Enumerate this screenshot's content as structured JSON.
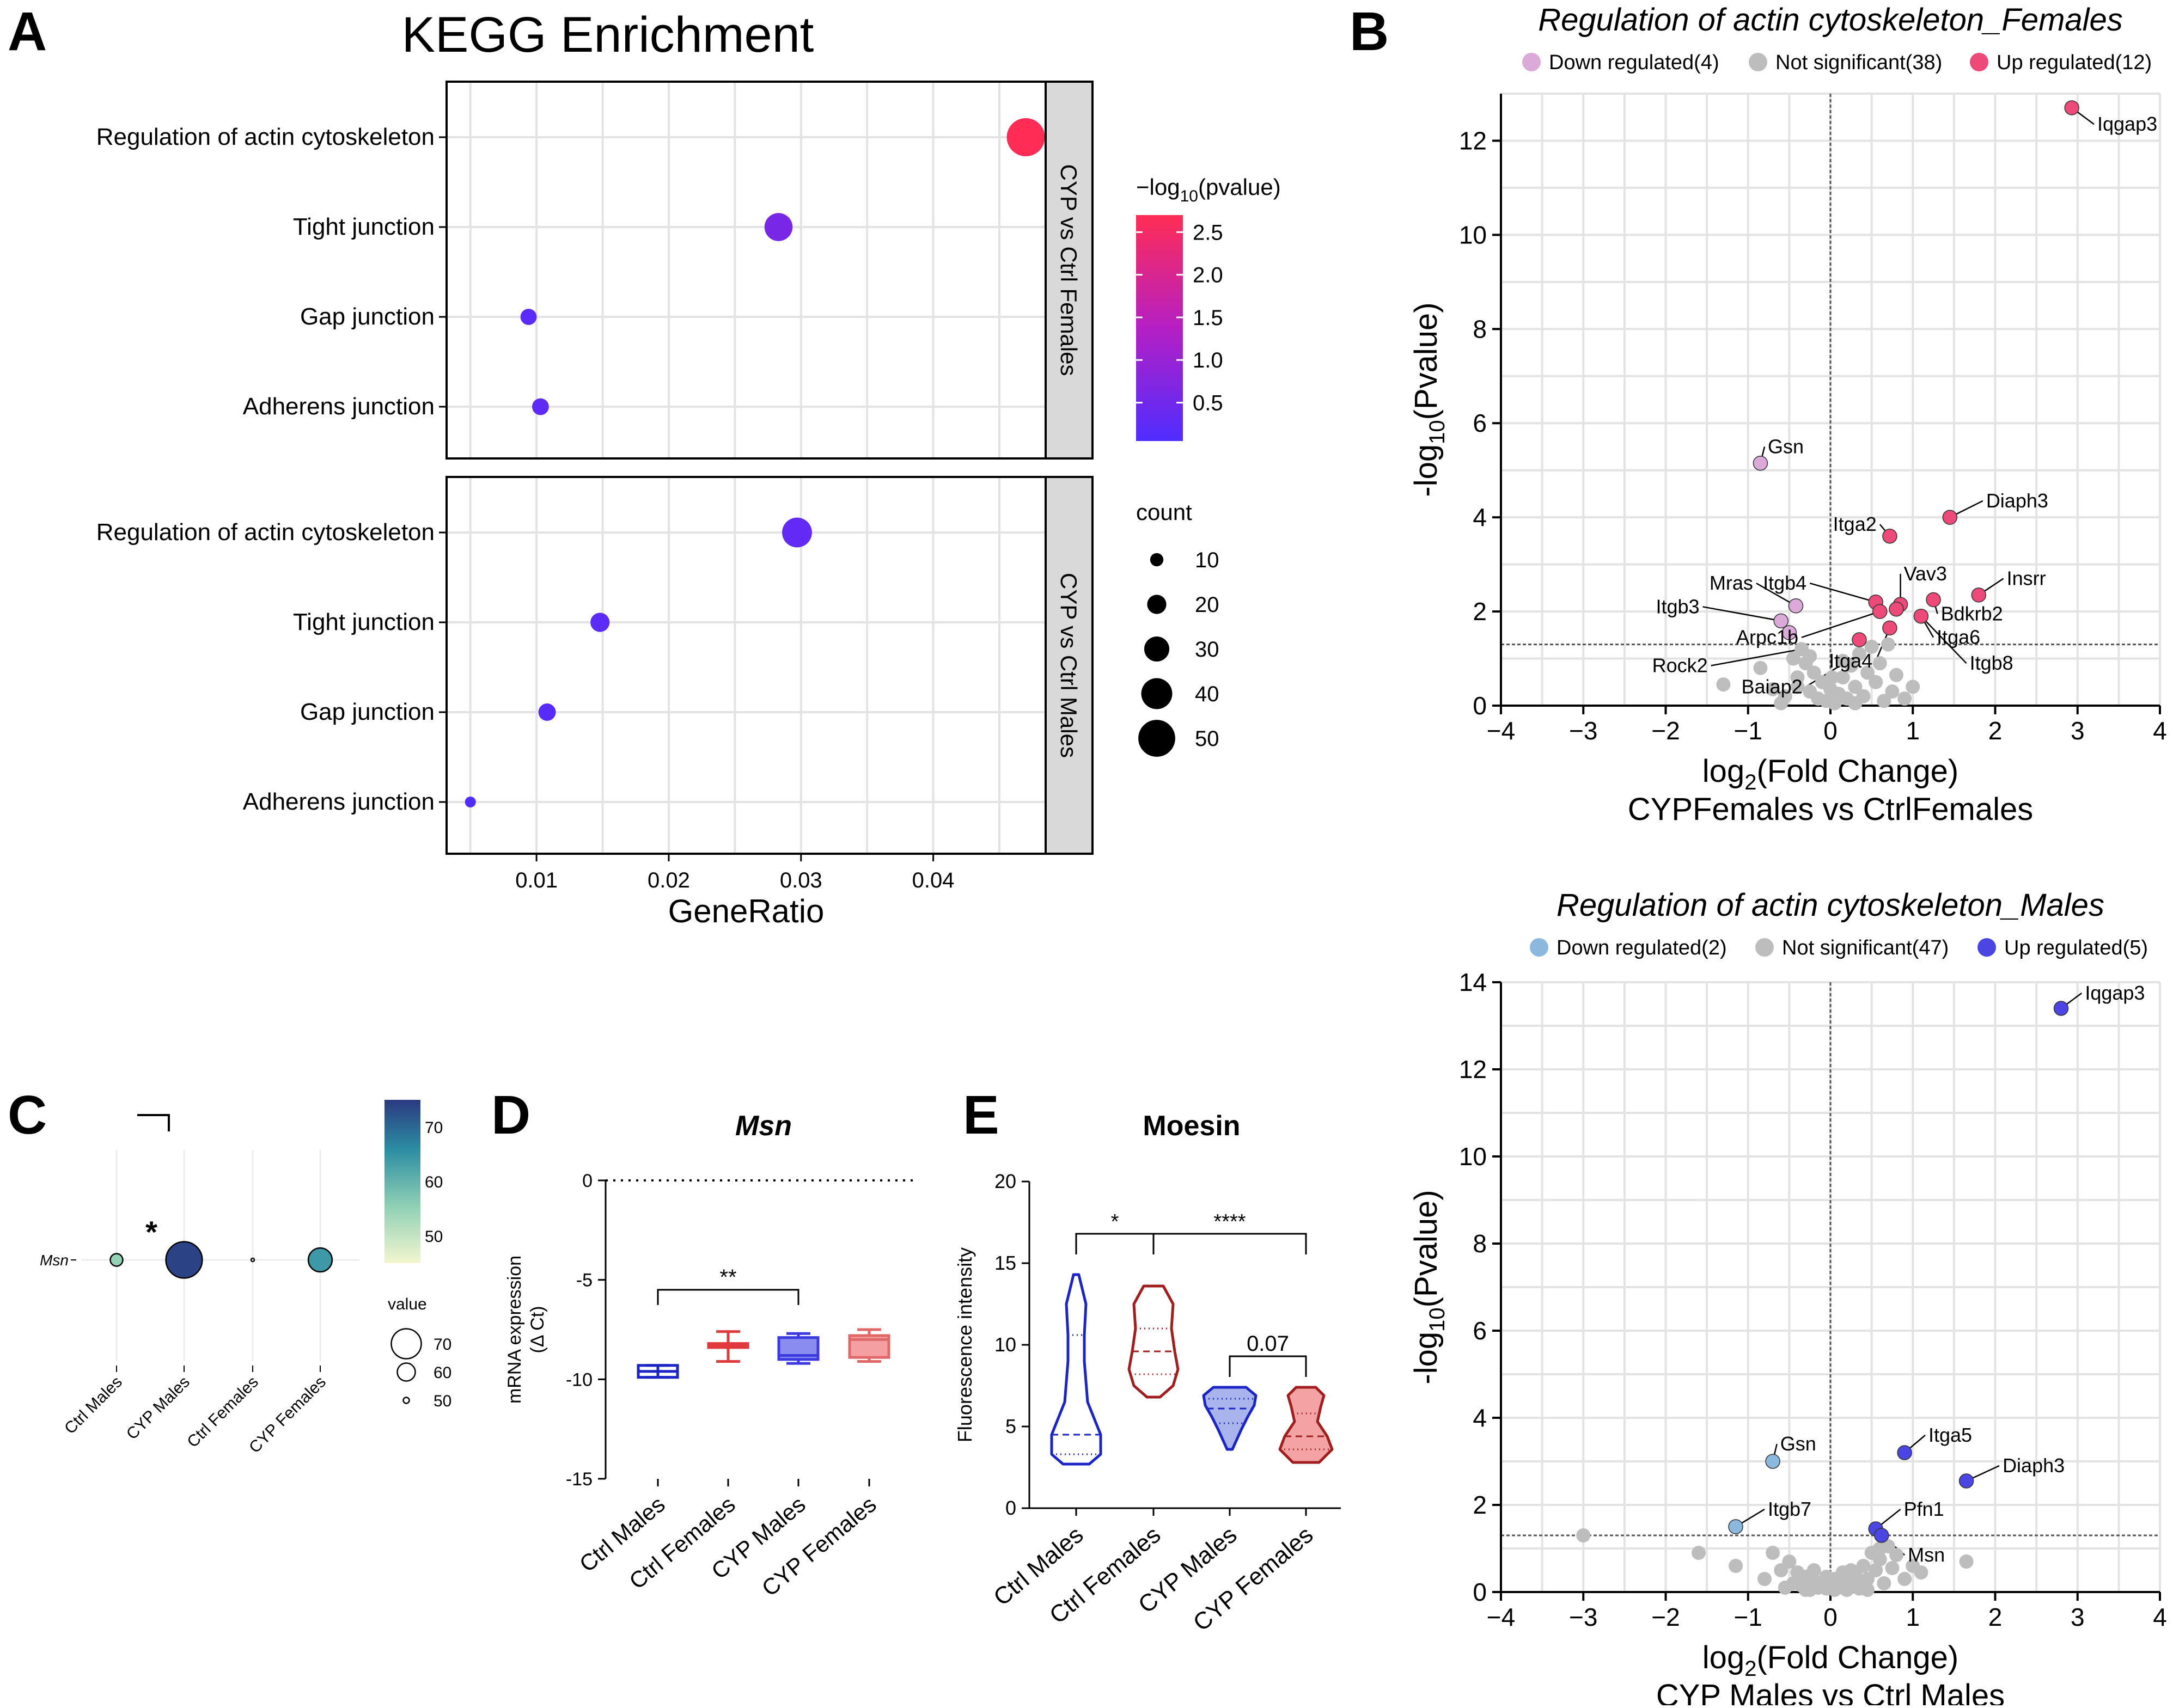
{
  "panels": {
    "A": "A",
    "B": "B",
    "C": "C",
    "D": "D",
    "E": "E"
  },
  "colors": {
    "enrich_low": "#4f2dff",
    "enrich_high": "#ff2d55",
    "fem_up": "#ee4a79",
    "fem_down": "#dcaad8",
    "male_up": "#4b46e3",
    "male_down": "#8db8de",
    "ns": "#bdbdbd",
    "ctrl_male": "#1b24c4",
    "ctrl_female": "#e03a3e",
    "cyp_male": "#3a3ae0",
    "cyp_female": "#e06868",
    "viol_female": "#a11e1e"
  },
  "chart_data": [
    {
      "id": "A",
      "type": "scatter",
      "title": "KEGG Enrichment",
      "xlabel": "GeneRatio",
      "xlim": [
        0.0032,
        0.0485
      ],
      "xticks": [
        "0.01",
        "0.02",
        "0.03",
        "0.04"
      ],
      "categories": [
        "Regulation of actin cytoskeleton",
        "Tight junction",
        "Gap junction",
        "Adherens junction"
      ],
      "facets": [
        {
          "label": "CYP vs Ctrl Females",
          "points": [
            {
              "term": "Regulation of actin cytoskeleton",
              "gene_ratio": 0.047,
              "count": 52,
              "neglog10p": 2.7
            },
            {
              "term": "Tight junction",
              "gene_ratio": 0.0283,
              "count": 35,
              "neglog10p": 0.6
            },
            {
              "term": "Gap junction",
              "gene_ratio": 0.0094,
              "count": 15,
              "neglog10p": 0.2
            },
            {
              "term": "Adherens junction",
              "gene_ratio": 0.0103,
              "count": 16,
              "neglog10p": 0.25
            }
          ]
        },
        {
          "label": "CYP vs Ctrl Males",
          "points": [
            {
              "term": "Regulation of actin cytoskeleton",
              "gene_ratio": 0.0297,
              "count": 38,
              "neglog10p": 0.3
            },
            {
              "term": "Tight junction",
              "gene_ratio": 0.0148,
              "count": 20,
              "neglog10p": 0.2
            },
            {
              "term": "Gap junction",
              "gene_ratio": 0.0108,
              "count": 17,
              "neglog10p": 0.15
            },
            {
              "term": "Adherens junction",
              "gene_ratio": 0.005,
              "count": 6,
              "neglog10p": 0.05
            }
          ]
        }
      ],
      "color_legend": {
        "title_main": "−log",
        "title_sub": "10",
        "title_end": "(pvalue)",
        "ticks": [
          "2.5",
          "2.0",
          "1.5",
          "1.0",
          "0.5"
        ]
      },
      "size_legend": {
        "title": "count",
        "ticks": [
          "10",
          "20",
          "30",
          "40",
          "50"
        ]
      }
    },
    {
      "id": "B_females",
      "type": "scatter",
      "title": "Regulation of actin cytoskeleton_Females",
      "legend": [
        "Down regulated(4)",
        "Not significant(38)",
        "Up regulated(12)"
      ],
      "xlim": [
        -4,
        4
      ],
      "ylim": [
        0,
        13
      ],
      "xticks": [
        "−4",
        "−3",
        "−2",
        "−1",
        "0",
        "1",
        "2",
        "3",
        "4"
      ],
      "yticks": [
        "0",
        "2",
        "4",
        "6",
        "8",
        "10",
        "12"
      ],
      "xlabel_main": "log",
      "xlabel_sub": "2",
      "xlabel_end": "(Fold Change)",
      "xlabel2": "CYPFemales vs CtrlFemales",
      "ylabel_main": "-log",
      "ylabel_sub": "10",
      "ylabel_end": "(Pvalue)",
      "threshold": 1.3,
      "points": [
        {
          "x": 2.93,
          "y": 12.7,
          "g": "up"
        },
        {
          "x": 1.45,
          "y": 4.0,
          "g": "up"
        },
        {
          "x": 0.72,
          "y": 3.6,
          "g": "up"
        },
        {
          "x": 1.8,
          "y": 2.35,
          "g": "up"
        },
        {
          "x": 0.55,
          "y": 2.2,
          "g": "up"
        },
        {
          "x": 0.6,
          "y": 2.0,
          "g": "up"
        },
        {
          "x": 0.85,
          "y": 2.15,
          "g": "up"
        },
        {
          "x": 0.8,
          "y": 2.05,
          "g": "up"
        },
        {
          "x": 1.25,
          "y": 2.25,
          "g": "up"
        },
        {
          "x": 1.1,
          "y": 1.9,
          "g": "up"
        },
        {
          "x": 0.72,
          "y": 1.65,
          "g": "up"
        },
        {
          "x": 0.35,
          "y": 1.4,
          "g": "up"
        },
        {
          "x": -0.85,
          "y": 5.15,
          "g": "down"
        },
        {
          "x": -0.6,
          "y": 1.8,
          "g": "down"
        },
        {
          "x": -0.42,
          "y": 2.12,
          "g": "down"
        },
        {
          "x": -0.5,
          "y": 1.55,
          "g": "down"
        },
        {
          "x": -1.3,
          "y": 0.45,
          "g": "ns"
        },
        {
          "x": -0.85,
          "y": 0.8,
          "g": "ns"
        },
        {
          "x": -0.7,
          "y": 0.35,
          "g": "ns"
        },
        {
          "x": -0.55,
          "y": 0.2,
          "g": "ns"
        },
        {
          "x": -0.45,
          "y": 1.0,
          "g": "ns"
        },
        {
          "x": -0.4,
          "y": 0.6,
          "g": "ns"
        },
        {
          "x": -0.35,
          "y": 1.2,
          "g": "ns"
        },
        {
          "x": -0.3,
          "y": 0.9,
          "g": "ns"
        },
        {
          "x": -0.25,
          "y": 0.3,
          "g": "ns"
        },
        {
          "x": -0.2,
          "y": 0.7,
          "g": "ns"
        },
        {
          "x": -0.15,
          "y": 0.15,
          "g": "ns"
        },
        {
          "x": -0.1,
          "y": 0.5,
          "g": "ns"
        },
        {
          "x": -0.05,
          "y": 0.1,
          "g": "ns"
        },
        {
          "x": 0.0,
          "y": 0.35,
          "g": "ns"
        },
        {
          "x": 0.05,
          "y": 0.05,
          "g": "ns"
        },
        {
          "x": 0.1,
          "y": 0.25,
          "g": "ns"
        },
        {
          "x": 0.15,
          "y": 0.6,
          "g": "ns"
        },
        {
          "x": 0.2,
          "y": 0.15,
          "g": "ns"
        },
        {
          "x": 0.25,
          "y": 0.85,
          "g": "ns"
        },
        {
          "x": 0.3,
          "y": 0.4,
          "g": "ns"
        },
        {
          "x": 0.35,
          "y": 1.1,
          "g": "ns"
        },
        {
          "x": 0.4,
          "y": 0.2,
          "g": "ns"
        },
        {
          "x": 0.45,
          "y": 0.7,
          "g": "ns"
        },
        {
          "x": 0.5,
          "y": 1.25,
          "g": "ns"
        },
        {
          "x": 0.55,
          "y": 0.5,
          "g": "ns"
        },
        {
          "x": 0.6,
          "y": 0.9,
          "g": "ns"
        },
        {
          "x": 0.65,
          "y": 0.1,
          "g": "ns"
        },
        {
          "x": 0.7,
          "y": 1.3,
          "g": "ns"
        },
        {
          "x": 0.75,
          "y": 0.3,
          "g": "ns"
        },
        {
          "x": 0.8,
          "y": 0.65,
          "g": "ns"
        },
        {
          "x": 0.9,
          "y": 0.15,
          "g": "ns"
        },
        {
          "x": 1.0,
          "y": 0.4,
          "g": "ns"
        },
        {
          "x": -0.6,
          "y": 0.05,
          "g": "ns"
        },
        {
          "x": 0.02,
          "y": 0.6,
          "g": "ns"
        },
        {
          "x": -0.25,
          "y": 1.05,
          "g": "ns"
        },
        {
          "x": 0.15,
          "y": 0.95,
          "g": "ns"
        },
        {
          "x": 0.3,
          "y": 0.05,
          "g": "ns"
        },
        {
          "x": -0.4,
          "y": 0.4,
          "g": "ns"
        }
      ],
      "labels": [
        {
          "t": "Iqgap3",
          "x": 2.93,
          "y": 12.7,
          "lx": 3.2,
          "ly": 12.35
        },
        {
          "t": "Diaph3",
          "x": 1.45,
          "y": 4.0,
          "lx": 1.85,
          "ly": 4.35
        },
        {
          "t": "Itga2",
          "x": 0.72,
          "y": 3.6,
          "lx": 0.6,
          "ly": 3.85
        },
        {
          "t": "Gsn",
          "x": -0.85,
          "y": 5.15,
          "lx": -0.8,
          "ly": 5.5
        },
        {
          "t": "Insrr",
          "x": 1.8,
          "y": 2.35,
          "lx": 2.1,
          "ly": 2.7
        },
        {
          "t": "Vav3",
          "x": 0.85,
          "y": 2.15,
          "lx": 0.85,
          "ly": 2.8
        },
        {
          "t": "Itgb4",
          "x": 0.55,
          "y": 2.2,
          "lx": -0.25,
          "ly": 2.6
        },
        {
          "t": "Mras",
          "x": -0.42,
          "y": 2.12,
          "lx": -0.9,
          "ly": 2.6
        },
        {
          "t": "Bdkrb2",
          "x": 1.25,
          "y": 2.25,
          "lx": 1.3,
          "ly": 1.95
        },
        {
          "t": "Itgb3",
          "x": -0.6,
          "y": 1.8,
          "lx": -1.55,
          "ly": 2.1
        },
        {
          "t": "Arpc1b",
          "x": 0.6,
          "y": 2.0,
          "lx": -0.35,
          "ly": 1.45
        },
        {
          "t": "Itga6",
          "x": 1.1,
          "y": 1.9,
          "lx": 1.25,
          "ly": 1.45
        },
        {
          "t": "Itgb8",
          "x": 1.1,
          "y": 1.9,
          "lx": 1.65,
          "ly": 0.9
        },
        {
          "t": "Itga4",
          "x": 0.72,
          "y": 1.65,
          "lx": 0.55,
          "ly": 0.95
        },
        {
          "t": "Rock2",
          "x": -0.35,
          "y": 1.2,
          "lx": -1.45,
          "ly": 0.85
        },
        {
          "t": "Baiap2",
          "x": 0.35,
          "y": 1.1,
          "lx": -0.3,
          "ly": 0.4
        }
      ]
    },
    {
      "id": "B_males",
      "type": "scatter",
      "title": "Regulation of actin cytoskeleton_Males",
      "legend": [
        "Down regulated(2)",
        "Not significant(47)",
        "Up regulated(5)"
      ],
      "xlim": [
        -4,
        4
      ],
      "ylim": [
        0,
        14
      ],
      "xticks": [
        "−4",
        "−3",
        "−2",
        "−1",
        "0",
        "1",
        "2",
        "3",
        "4"
      ],
      "yticks": [
        "0",
        "2",
        "4",
        "6",
        "8",
        "10",
        "12",
        "14"
      ],
      "xlabel_main": "log",
      "xlabel_sub": "2",
      "xlabel_end": "(Fold Change)",
      "xlabel2": "CYP Males vs Ctrl Males",
      "ylabel_main": "-log",
      "ylabel_sub": "10",
      "ylabel_end": "(Pvalue)",
      "threshold": 1.3,
      "points": [
        {
          "x": 2.8,
          "y": 13.4,
          "g": "up"
        },
        {
          "x": 0.9,
          "y": 3.2,
          "g": "up"
        },
        {
          "x": 1.65,
          "y": 2.55,
          "g": "up"
        },
        {
          "x": 0.55,
          "y": 1.45,
          "g": "up"
        },
        {
          "x": 0.62,
          "y": 1.3,
          "g": "up"
        },
        {
          "x": -0.7,
          "y": 3.0,
          "g": "down"
        },
        {
          "x": -1.15,
          "y": 1.5,
          "g": "down"
        },
        {
          "x": -3.0,
          "y": 1.3,
          "g": "ns"
        },
        {
          "x": -1.6,
          "y": 0.9,
          "g": "ns"
        },
        {
          "x": -1.15,
          "y": 0.6,
          "g": "ns"
        },
        {
          "x": -0.8,
          "y": 0.3,
          "g": "ns"
        },
        {
          "x": -0.7,
          "y": 0.9,
          "g": "ns"
        },
        {
          "x": -0.6,
          "y": 0.5,
          "g": "ns"
        },
        {
          "x": -0.5,
          "y": 0.7,
          "g": "ns"
        },
        {
          "x": -0.45,
          "y": 0.2,
          "g": "ns"
        },
        {
          "x": -0.4,
          "y": 0.45,
          "g": "ns"
        },
        {
          "x": -0.35,
          "y": 0.15,
          "g": "ns"
        },
        {
          "x": -0.3,
          "y": 0.35,
          "g": "ns"
        },
        {
          "x": -0.25,
          "y": 0.05,
          "g": "ns"
        },
        {
          "x": -0.2,
          "y": 0.25,
          "g": "ns"
        },
        {
          "x": -0.15,
          "y": 0.1,
          "g": "ns"
        },
        {
          "x": -0.1,
          "y": 0.18,
          "g": "ns"
        },
        {
          "x": -0.05,
          "y": 0.08,
          "g": "ns"
        },
        {
          "x": 0.0,
          "y": 0.12,
          "g": "ns"
        },
        {
          "x": 0.05,
          "y": 0.05,
          "g": "ns"
        },
        {
          "x": 0.1,
          "y": 0.2,
          "g": "ns"
        },
        {
          "x": 0.15,
          "y": 0.1,
          "g": "ns"
        },
        {
          "x": 0.2,
          "y": 0.3,
          "g": "ns"
        },
        {
          "x": 0.25,
          "y": 0.15,
          "g": "ns"
        },
        {
          "x": 0.3,
          "y": 0.4,
          "g": "ns"
        },
        {
          "x": 0.35,
          "y": 0.08,
          "g": "ns"
        },
        {
          "x": 0.4,
          "y": 0.6,
          "g": "ns"
        },
        {
          "x": 0.45,
          "y": 0.3,
          "g": "ns"
        },
        {
          "x": 0.5,
          "y": 0.9,
          "g": "ns"
        },
        {
          "x": 0.55,
          "y": 0.5,
          "g": "ns"
        },
        {
          "x": 0.6,
          "y": 0.75,
          "g": "ns"
        },
        {
          "x": 0.65,
          "y": 0.2,
          "g": "ns"
        },
        {
          "x": 0.7,
          "y": 1.05,
          "g": "ns"
        },
        {
          "x": 0.75,
          "y": 0.55,
          "g": "ns"
        },
        {
          "x": 0.8,
          "y": 0.85,
          "g": "ns"
        },
        {
          "x": 0.9,
          "y": 0.3,
          "g": "ns"
        },
        {
          "x": 1.0,
          "y": 0.6,
          "g": "ns"
        },
        {
          "x": 1.1,
          "y": 0.45,
          "g": "ns"
        },
        {
          "x": 1.65,
          "y": 0.7,
          "g": "ns"
        },
        {
          "x": -0.05,
          "y": 0.35,
          "g": "ns"
        },
        {
          "x": 0.25,
          "y": 0.5,
          "g": "ns"
        },
        {
          "x": -0.55,
          "y": 0.1,
          "g": "ns"
        },
        {
          "x": 0.35,
          "y": 0.25,
          "g": "ns"
        },
        {
          "x": 0.15,
          "y": 0.45,
          "g": "ns"
        },
        {
          "x": -0.2,
          "y": 0.5,
          "g": "ns"
        },
        {
          "x": 0.6,
          "y": 1.0,
          "g": "ns"
        },
        {
          "x": 0.05,
          "y": 0.3,
          "g": "ns"
        },
        {
          "x": 0.45,
          "y": 0.05,
          "g": "ns"
        },
        {
          "x": -0.3,
          "y": 0.05,
          "g": "ns"
        },
        {
          "x": 0.2,
          "y": 0.05,
          "g": "ns"
        }
      ],
      "labels": [
        {
          "t": "Iqgap3",
          "x": 2.8,
          "y": 13.4,
          "lx": 3.05,
          "ly": 13.75
        },
        {
          "t": "Itga5",
          "x": 0.9,
          "y": 3.2,
          "lx": 1.15,
          "ly": 3.6
        },
        {
          "t": "Diaph3",
          "x": 1.65,
          "y": 2.55,
          "lx": 2.05,
          "ly": 2.9
        },
        {
          "t": "Gsn",
          "x": -0.7,
          "y": 3.0,
          "lx": -0.65,
          "ly": 3.4
        },
        {
          "t": "Itgb7",
          "x": -1.15,
          "y": 1.5,
          "lx": -0.8,
          "ly": 1.9
        },
        {
          "t": "Pfn1",
          "x": 0.55,
          "y": 1.45,
          "lx": 0.85,
          "ly": 1.9
        },
        {
          "t": "Msn",
          "x": 0.62,
          "y": 1.3,
          "lx": 0.9,
          "ly": 0.85
        }
      ]
    },
    {
      "id": "C",
      "type": "scatter",
      "gene": "Msn",
      "categories": [
        "Ctrl Males",
        "CYP Males",
        "Ctrl Females",
        "CYP Females"
      ],
      "values": [
        55,
        74,
        46,
        64
      ],
      "star": "*",
      "color_legend": {
        "ticks": [
          "70",
          "60",
          "50"
        ],
        "range": [
          45,
          75
        ]
      },
      "size_legend": {
        "title": "value",
        "ticks": [
          "70",
          "60",
          "50"
        ]
      }
    },
    {
      "id": "D",
      "type": "box",
      "title": "Msn",
      "ylabel": "mRNA expression",
      "ylabel2": "(Δ Ct)",
      "ylim": [
        -15,
        0
      ],
      "yticks": [
        "0",
        "-5",
        "-10",
        "-15"
      ],
      "categories": [
        "Ctrl Males",
        "Ctrl Females",
        "CYP Males",
        "CYP Females"
      ],
      "boxes": [
        {
          "min": -9.9,
          "q1": -9.9,
          "median": -9.6,
          "q3": -9.3,
          "max": -9.3
        },
        {
          "min": -9.1,
          "q1": -8.4,
          "median": -8.3,
          "q3": -8.2,
          "max": -7.6
        },
        {
          "min": -9.2,
          "q1": -9.0,
          "median": -8.8,
          "q3": -7.9,
          "max": -7.7
        },
        {
          "min": -9.1,
          "q1": -8.9,
          "median": -8.0,
          "q3": -7.8,
          "max": -7.5
        }
      ],
      "sig": [
        {
          "from": 0,
          "to": 2,
          "label": "**",
          "y": -5.5
        }
      ]
    },
    {
      "id": "E",
      "type": "violin",
      "title": "Moesin",
      "ylabel": "Fluorescence intensity",
      "ylim": [
        0,
        20
      ],
      "yticks": [
        "0",
        "5",
        "10",
        "15",
        "20"
      ],
      "categories": [
        "Ctrl Males",
        "Ctrl Females",
        "CYP Males",
        "CYP Females"
      ],
      "violins": [
        {
          "min": 2.7,
          "max": 14.3,
          "q1": 3.3,
          "median": 4.5,
          "q3": 10.6
        },
        {
          "min": 6.8,
          "max": 13.6,
          "q1": 8.2,
          "median": 9.6,
          "q3": 11.0
        },
        {
          "min": 3.6,
          "max": 7.4,
          "q1": 5.2,
          "median": 6.1,
          "q3": 6.7
        },
        {
          "min": 2.8,
          "max": 7.4,
          "q1": 3.6,
          "median": 4.4,
          "q3": 5.8
        }
      ],
      "sig": [
        {
          "from": 0,
          "to": 1,
          "label": "*",
          "y": 16.8
        },
        {
          "from": 1,
          "to": 3,
          "label": "****",
          "y": 16.8
        },
        {
          "from": 2,
          "to": 3,
          "label": "0.07",
          "y": 9.3
        }
      ]
    }
  ]
}
